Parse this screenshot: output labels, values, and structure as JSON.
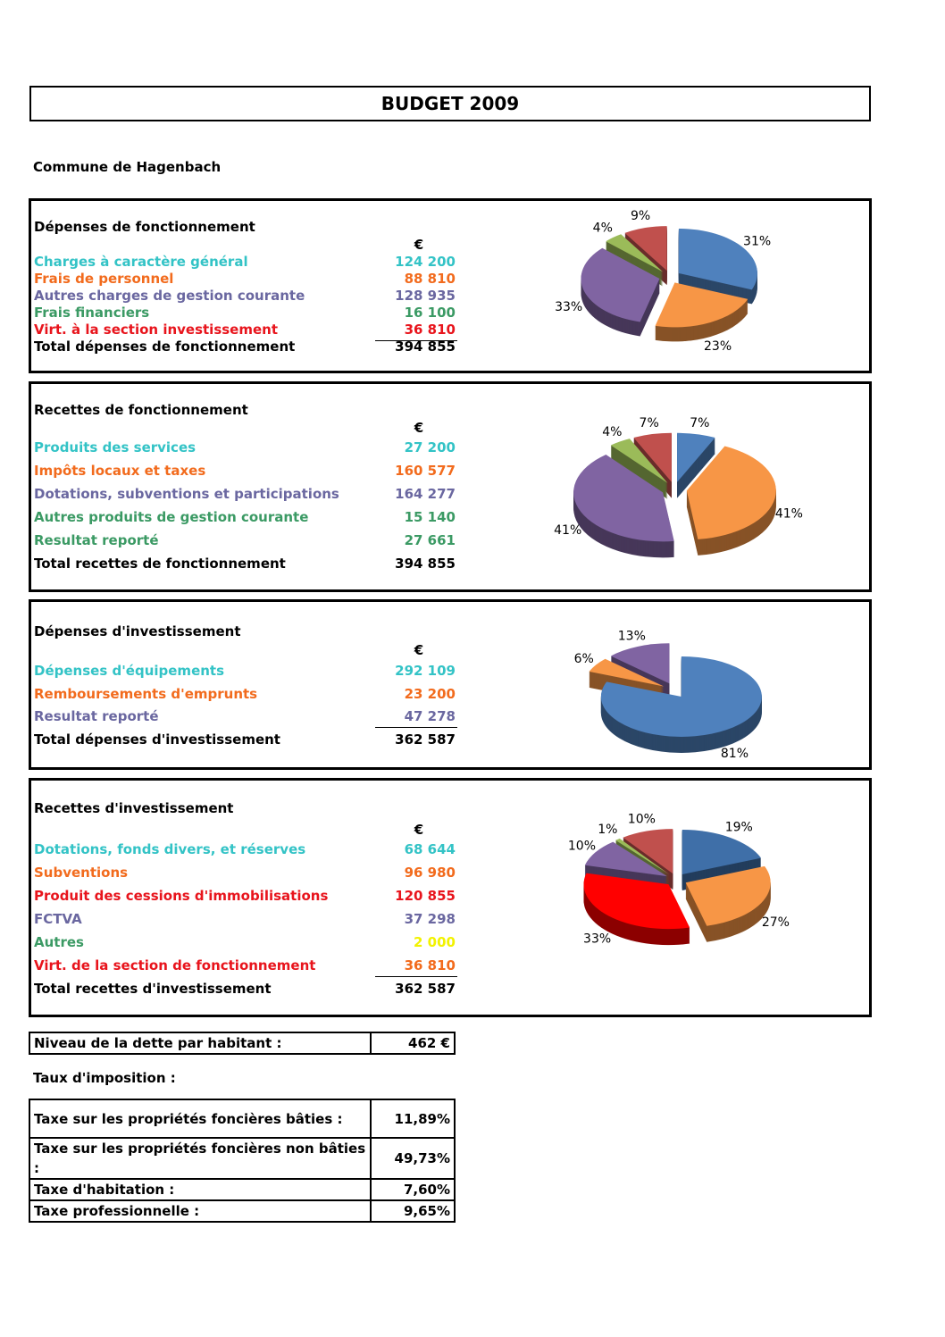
{
  "title": "BUDGET 2009",
  "commune": "Commune de Hagenbach",
  "sections": [
    {
      "title": "Dépenses de fonctionnement",
      "currency": "€",
      "rows": [
        {
          "label": "Charges à caractère général",
          "value": "124 200",
          "color": "#33c3c6",
          "value_color": "#33c3c6"
        },
        {
          "label": "Frais de personnel",
          "value": "88 810",
          "color": "#f26b1d",
          "value_color": "#f26b1d"
        },
        {
          "label": "Autres charges de gestion courante",
          "value": "128 935",
          "color": "#6a67a0",
          "value_color": "#6a67a0"
        },
        {
          "label": "Frais financiers",
          "value": "16 100",
          "color": "#3b9a64",
          "value_color": "#3b9a64"
        },
        {
          "label": "Virt. à la section investissement",
          "value": "36 810",
          "color": "#e8141c",
          "value_color": "#e8141c"
        }
      ],
      "total": {
        "label": "Total dépenses de fonctionnement",
        "value": "394 855"
      },
      "chart_data": {
        "type": "pie",
        "values": [
          31,
          23,
          33,
          4,
          9
        ],
        "labels": [
          "31%",
          "23%",
          "33%",
          "4%",
          "9%"
        ],
        "colors": [
          "#4f81bd",
          "#f79646",
          "#8064a2",
          "#9bbb59",
          "#c0504d"
        ]
      }
    },
    {
      "title": "Recettes de fonctionnement",
      "currency": "€",
      "rows": [
        {
          "label": "Produits des services",
          "value": "27 200",
          "color": "#33c3c6",
          "value_color": "#33c3c6"
        },
        {
          "label": "Impôts locaux et taxes",
          "value": "160 577",
          "color": "#f26b1d",
          "value_color": "#f26b1d"
        },
        {
          "label": "Dotations, subventions et participations",
          "value": "164 277",
          "color": "#6a67a0",
          "value_color": "#6a67a0"
        },
        {
          "label": "Autres produits de gestion courante",
          "value": "15 140",
          "color": "#3b9a64",
          "value_color": "#3b9a64"
        },
        {
          "label": "Resultat reporté",
          "value": "27 661",
          "color": "#3b9a64",
          "value_color": "#3b9a64"
        }
      ],
      "total": {
        "label": "Total recettes de fonctionnement",
        "value": "394 855"
      },
      "chart_data": {
        "type": "pie",
        "values": [
          7,
          41,
          41,
          4,
          7
        ],
        "labels": [
          "7%",
          "41%",
          "41%",
          "4%",
          "7%"
        ],
        "colors": [
          "#4f81bd",
          "#f79646",
          "#8064a2",
          "#9bbb59",
          "#c0504d"
        ]
      }
    },
    {
      "title": "Dépenses d'investissement",
      "currency": "€",
      "rows": [
        {
          "label": "Dépenses d'équipements",
          "value": "292 109",
          "color": "#33c3c6",
          "value_color": "#33c3c6"
        },
        {
          "label": "Remboursements d'emprunts",
          "value": "23 200",
          "color": "#f26b1d",
          "value_color": "#f26b1d"
        },
        {
          "label": "Resultat reporté",
          "value": "47 278",
          "color": "#6a67a0",
          "value_color": "#6a67a0"
        }
      ],
      "total": {
        "label": "Total dépenses d'investissement",
        "value": "362 587"
      },
      "chart_data": {
        "type": "pie",
        "values": [
          81,
          6,
          13
        ],
        "labels": [
          "81%",
          "6%",
          "13%"
        ],
        "colors": [
          "#4f81bd",
          "#f79646",
          "#8064a2"
        ]
      }
    },
    {
      "title": "Recettes d'investissement",
      "currency": "€",
      "rows": [
        {
          "label": "Dotations, fonds divers, et réserves",
          "value": "68 644",
          "color": "#33c3c6",
          "value_color": "#33c3c6"
        },
        {
          "label": "Subventions",
          "value": "96 980",
          "color": "#f26b1d",
          "value_color": "#f26b1d"
        },
        {
          "label": "Produit des cessions d'immobilisations",
          "value": "120 855",
          "color": "#e8141c",
          "value_color": "#e8141c"
        },
        {
          "label": "FCTVA",
          "value": "37 298",
          "color": "#6a67a0",
          "value_color": "#6a67a0"
        },
        {
          "label": "Autres",
          "value": "2 000",
          "color": "#3b9a64",
          "value_color": "#f2f200"
        },
        {
          "label": "Virt. de la section de fonctionnement",
          "value": "36 810",
          "color": "#e8141c",
          "value_color": "#f26b1d"
        }
      ],
      "total": {
        "label": "Total recettes d'investissement",
        "value": "362 587"
      },
      "chart_data": {
        "type": "pie",
        "values": [
          19,
          27,
          33,
          10,
          1,
          10
        ],
        "labels": [
          "19%",
          "27%",
          "33%",
          "10%",
          "1%",
          "10%"
        ],
        "colors": [
          "#3f6fa8",
          "#f79646",
          "#ff0000",
          "#8064a2",
          "#9bbb59",
          "#c0504d"
        ]
      }
    }
  ],
  "debt": {
    "label": "Niveau de la dette par habitant :",
    "value": "462 €"
  },
  "taux": {
    "title": "Taux d'imposition :",
    "rows": [
      {
        "label": "Taxe sur les propriétés foncières bâties :",
        "value": "11,89%"
      },
      {
        "label": "Taxe sur les propriétés foncières non bâties :",
        "value": "49,73%"
      },
      {
        "label": "Taxe d'habitation :",
        "value": "7,60%"
      },
      {
        "label": "Taxe professionnelle :",
        "value": "9,65%"
      }
    ]
  }
}
